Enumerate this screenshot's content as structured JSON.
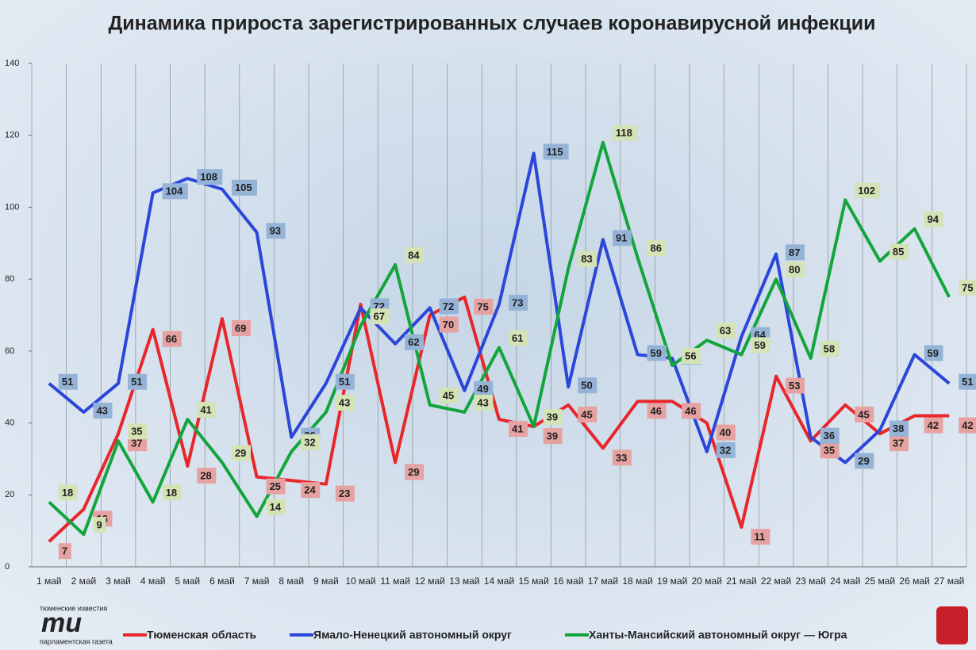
{
  "chart_data": {
    "type": "line",
    "title": "Динамика прироста зарегистрированных случаев коронавирусной инфекции",
    "categories": [
      "1 май",
      "2 май",
      "3 май",
      "4 май",
      "5 май",
      "6 май",
      "7 май",
      "8 май",
      "9 май",
      "10 май",
      "11 май",
      "12 май",
      "13 май",
      "14 май",
      "15 май",
      "16 май",
      "17 май",
      "18 май",
      "19 май",
      "20 май",
      "21 май",
      "22 май",
      "23 май",
      "24 май",
      "25 май",
      "26 май",
      "27 май"
    ],
    "series": [
      {
        "name": "Тюменская область",
        "color": "#e8262b",
        "label_color": "#e6a1a1",
        "values": [
          7,
          16,
          37,
          66,
          28,
          69,
          25,
          24,
          23,
          73,
          29,
          70,
          75,
          41,
          39,
          45,
          33,
          46,
          46,
          40,
          11,
          53,
          35,
          45,
          37,
          42,
          42
        ]
      },
      {
        "name": "Ямало-Ненецкий автономный округ",
        "color": "#2b46d9",
        "label_color": "#95b3d7",
        "values": [
          51,
          43,
          51,
          104,
          108,
          105,
          93,
          36,
          51,
          72,
          62,
          72,
          49,
          73,
          115,
          50,
          91,
          59,
          58,
          32,
          64,
          87,
          36,
          29,
          38,
          59,
          51
        ]
      },
      {
        "name": "Ханты-Мансийский автономный округ — Югра",
        "color": "#13a53c",
        "label_color": "#d4e3b5",
        "values": [
          18,
          9,
          35,
          18,
          41,
          29,
          14,
          32,
          43,
          67,
          84,
          45,
          43,
          61,
          39,
          83,
          118,
          86,
          56,
          63,
          59,
          80,
          58,
          102,
          85,
          94,
          75
        ]
      }
    ],
    "ylim": [
      0,
      140
    ],
    "yticks": [
      0,
      20,
      40,
      60,
      80,
      100,
      120,
      140
    ],
    "grid": true,
    "legend": "bottom",
    "logo": {
      "top": "тюменские известия",
      "mark": "ти",
      "bottom": "парламентская газета"
    }
  }
}
